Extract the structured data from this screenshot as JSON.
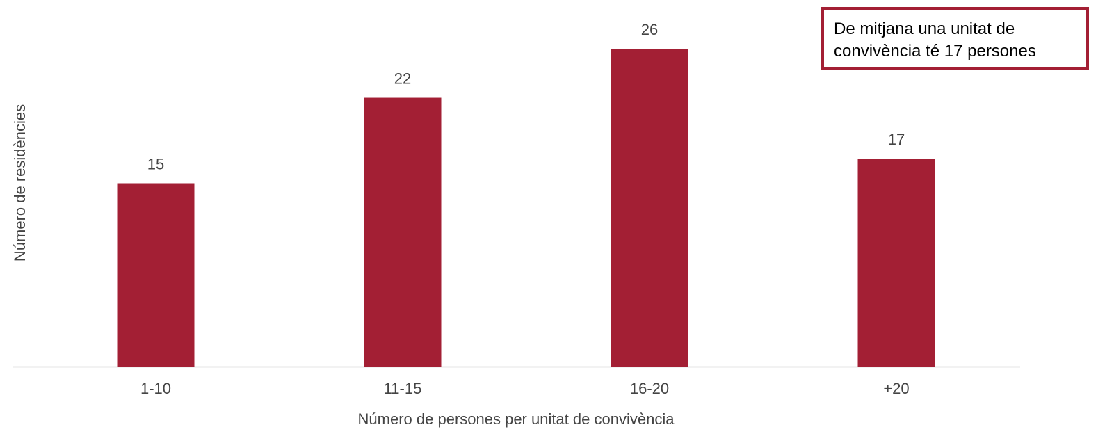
{
  "chart_data": {
    "type": "bar",
    "x_label": "Número de persones per unitat de convivència",
    "y_label": "Número de residències",
    "annotation": "De mitjana una unitat de convivència té 17 persones",
    "categories": [
      "1-10",
      "11-15",
      "16-20",
      "+20"
    ],
    "values": [
      15,
      22,
      26,
      17
    ],
    "color": "#a31f34",
    "ylim": [
      0,
      30
    ],
    "grid": false
  }
}
